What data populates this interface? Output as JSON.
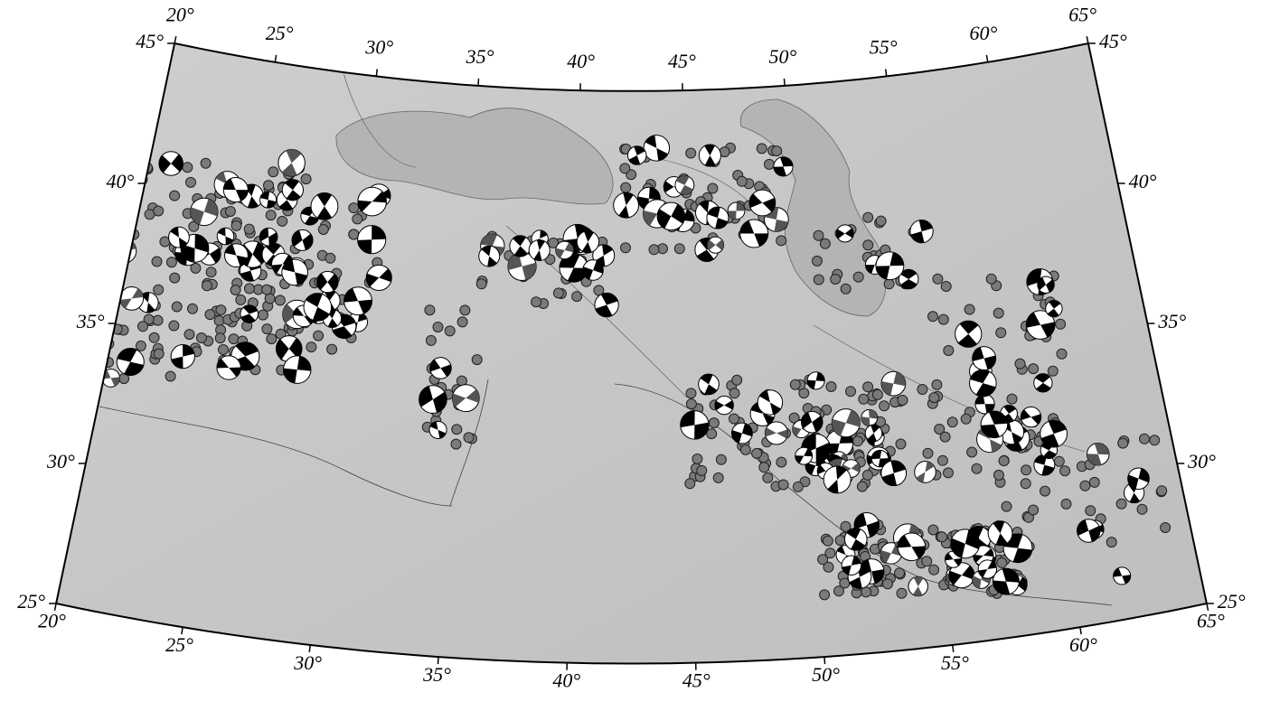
{
  "map": {
    "top_longitude_labels": [
      "20°",
      "25°",
      "30°",
      "35°",
      "40°",
      "45°",
      "50°",
      "55°",
      "60°",
      "65°"
    ],
    "bottom_longitude_labels": [
      "20°",
      "25°",
      "30°",
      "35°",
      "40°",
      "45°",
      "50°",
      "55°",
      "60°",
      "65°"
    ],
    "left_latitude_labels": [
      "45°",
      "40°",
      "35°",
      "30°",
      "25°"
    ],
    "right_latitude_labels": [
      "45°",
      "40°",
      "35°",
      "30°",
      "25°"
    ]
  }
}
